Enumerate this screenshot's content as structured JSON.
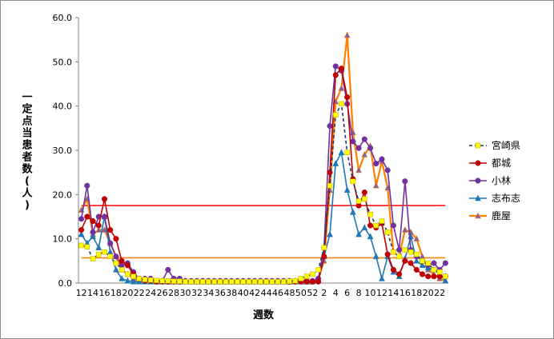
{
  "chart_data": {
    "type": "line",
    "ylabel": "一定点当患者数(人)",
    "xlabel": "週数",
    "ylim": [
      0,
      60
    ],
    "yticks": [
      "0.0",
      "10.0",
      "20.0",
      "30.0",
      "40.0",
      "50.0",
      "60.0"
    ],
    "categories": [
      "12",
      "13",
      "14",
      "15",
      "16",
      "17",
      "18",
      "19",
      "20",
      "21",
      "22",
      "23",
      "24",
      "25",
      "26",
      "27",
      "28",
      "29",
      "30",
      "31",
      "32",
      "33",
      "34",
      "35",
      "36",
      "37",
      "38",
      "39",
      "40",
      "41",
      "42",
      "43",
      "44",
      "45",
      "46",
      "47",
      "48",
      "49",
      "50",
      "51",
      "52",
      "1",
      "2",
      "3",
      "4",
      "5",
      "6",
      "7",
      "8",
      "9",
      "10",
      "11",
      "12",
      "13",
      "14",
      "15",
      "16",
      "17",
      "18",
      "19",
      "20",
      "21",
      "22",
      "23"
    ],
    "x_tick_labels": [
      "12",
      "14",
      "16",
      "18",
      "20",
      "22",
      "24",
      "26",
      "28",
      "30",
      "32",
      "34",
      "36",
      "38",
      "40",
      "42",
      "44",
      "46",
      "48",
      "50",
      "52",
      "2",
      "4",
      "6",
      "8",
      "10",
      "12",
      "14",
      "16",
      "18",
      "20",
      "22"
    ],
    "grid": false,
    "legend_position": "right",
    "series": [
      {
        "name": "宮崎県",
        "color": "#1f3864",
        "marker_color": "#ffff00",
        "marker": "square",
        "dash": true,
        "values": [
          8.5,
          8.2,
          5.5,
          6.5,
          7.0,
          6.0,
          4.5,
          3.0,
          2.0,
          1.5,
          1.0,
          0.8,
          0.7,
          0.6,
          0.5,
          0.5,
          0.4,
          0.4,
          0.3,
          0.3,
          0.3,
          0.3,
          0.3,
          0.3,
          0.3,
          0.3,
          0.3,
          0.3,
          0.3,
          0.3,
          0.3,
          0.3,
          0.3,
          0.3,
          0.3,
          0.3,
          0.4,
          0.5,
          1.0,
          1.5,
          2.0,
          3.0,
          8.0,
          22.0,
          38.0,
          40.5,
          29.5,
          23.0,
          18.5,
          19.0,
          15.5,
          13.0,
          14.0,
          11.5,
          7.0,
          6.0,
          7.5,
          7.0,
          6.5,
          5.0,
          4.5,
          3.0,
          2.5,
          1.5
        ]
      },
      {
        "name": "都城",
        "color": "#c00000",
        "marker_color": "#c00000",
        "marker": "circle",
        "values": [
          12.0,
          15.0,
          14.0,
          13.0,
          19.0,
          12.0,
          10.0,
          5.0,
          4.0,
          2.0,
          1.0,
          0.5,
          0.5,
          0.3,
          0.3,
          0.3,
          0.3,
          0.3,
          0.3,
          0.3,
          0.3,
          0.3,
          0.3,
          0.3,
          0.3,
          0.3,
          0.3,
          0.3,
          0.3,
          0.3,
          0.3,
          0.3,
          0.3,
          0.3,
          0.3,
          0.3,
          0.3,
          0.3,
          0.3,
          0.3,
          0.3,
          0.3,
          6.0,
          25.0,
          47.0,
          48.5,
          42.0,
          23.5,
          17.5,
          20.5,
          13.0,
          12.5,
          13.5,
          6.5,
          3.0,
          2.0,
          5.0,
          4.5,
          3.0,
          2.0,
          1.5,
          1.5,
          1.5,
          1.5
        ]
      },
      {
        "name": "小林",
        "color": "#7030a0",
        "marker_color": "#7030a0",
        "marker": "circle",
        "values": [
          14.5,
          22.0,
          11.5,
          15.0,
          15.0,
          9.0,
          6.0,
          4.0,
          4.5,
          2.5,
          1.0,
          1.0,
          1.0,
          0.5,
          0.5,
          3.0,
          1.0,
          1.0,
          0.5,
          0.5,
          0.5,
          0.5,
          0.5,
          0.5,
          0.5,
          0.5,
          0.5,
          0.5,
          0.5,
          0.5,
          0.5,
          0.5,
          0.5,
          0.5,
          0.5,
          0.5,
          0.5,
          0.5,
          0.5,
          0.5,
          0.5,
          1.0,
          8.0,
          35.5,
          49.0,
          48.0,
          40.5,
          32.0,
          30.5,
          32.5,
          30.5,
          27.0,
          28.0,
          25.5,
          13.0,
          7.5,
          23.0,
          7.5,
          6.0,
          5.0,
          4.0,
          4.5,
          3.0,
          4.5
        ]
      },
      {
        "name": "志布志",
        "color": "#1f77b4",
        "marker_color": "#1f77b4",
        "marker": "triangle",
        "values": [
          11.0,
          9.0,
          10.5,
          8.0,
          15.0,
          7.0,
          3.0,
          1.0,
          0.5,
          0.3,
          0.3,
          0.3,
          0.3,
          0.3,
          0.3,
          0.3,
          0.3,
          0.3,
          0.3,
          0.3,
          0.3,
          0.3,
          0.3,
          0.3,
          0.3,
          0.3,
          0.3,
          0.3,
          0.3,
          0.3,
          0.3,
          0.3,
          0.3,
          0.3,
          0.3,
          0.3,
          0.3,
          0.3,
          0.3,
          0.3,
          0.3,
          0.5,
          6.0,
          11.0,
          27.0,
          29.5,
          21.0,
          16.0,
          11.0,
          12.5,
          10.5,
          6.0,
          1.0,
          6.0,
          2.5,
          1.5,
          5.5,
          10.5,
          5.0,
          4.0,
          3.5,
          3.0,
          2.0,
          0.5
        ]
      },
      {
        "name": "鹿屋",
        "color": "#ff7f00",
        "marker_color": "#8064a2",
        "marker": "triangle",
        "values": [
          16.5,
          19.0,
          11.0,
          12.0,
          12.0,
          9.0,
          6.0,
          3.0,
          2.0,
          1.0,
          0.5,
          0.5,
          0.3,
          0.3,
          0.3,
          0.3,
          0.3,
          0.3,
          0.3,
          0.3,
          0.3,
          0.3,
          0.3,
          0.3,
          0.3,
          0.3,
          0.3,
          0.3,
          0.3,
          0.3,
          0.3,
          0.3,
          0.3,
          0.3,
          0.3,
          0.3,
          0.3,
          0.3,
          0.3,
          0.3,
          0.3,
          1.0,
          5.0,
          21.0,
          41.0,
          44.0,
          56.0,
          34.0,
          25.5,
          29.0,
          31.0,
          22.0,
          27.5,
          21.5,
          7.0,
          6.0,
          12.0,
          11.5,
          10.0,
          6.0,
          3.0,
          2.0,
          1.0,
          0.5
        ]
      }
    ],
    "reference_lines": [
      {
        "value": 17.5,
        "color": "#ff0000"
      },
      {
        "value": 5.7,
        "color": "#ff7f00"
      }
    ]
  }
}
